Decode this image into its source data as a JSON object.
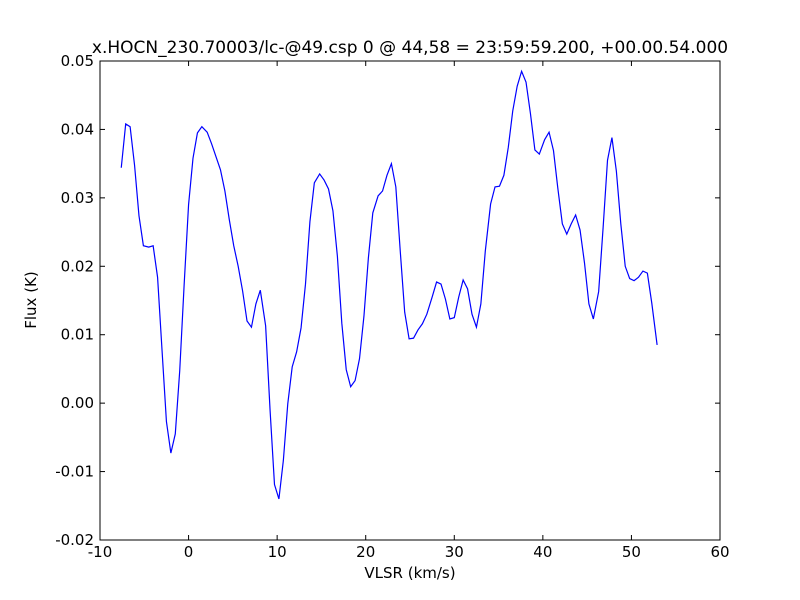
{
  "chart_data": {
    "type": "line",
    "title": "x.HOCN_230.70003/lc-@49.csp 0 @ 44,58 = 23:59:59.200, +00.00.54.000",
    "xlabel": "VLSR (km/s)",
    "ylabel": "Flux (K)",
    "xlim": [
      -10,
      60
    ],
    "xticks": [
      -10,
      0,
      10,
      20,
      30,
      40,
      50,
      60
    ],
    "ylim": [
      -0.02,
      0.05
    ],
    "yticks": [
      -0.02,
      -0.01,
      {
        "value": 0,
        "label": "0.00"
      },
      0.01,
      0.02,
      0.03,
      0.04,
      0.05
    ],
    "x": [
      -7.6,
      -7.1,
      -6.6,
      -6.1,
      -5.6,
      -5.1,
      -4.5,
      -4.0,
      -3.5,
      -3.0,
      -2.5,
      -2.0,
      -1.5,
      -1.0,
      -0.5,
      0.0,
      0.5,
      1.0,
      1.5,
      2.1,
      2.6,
      3.1,
      3.6,
      4.1,
      4.6,
      5.1,
      5.6,
      6.1,
      6.6,
      7.1,
      7.6,
      8.1,
      8.7,
      9.2,
      9.7,
      10.2,
      10.7,
      11.2,
      11.7,
      12.2,
      12.7,
      13.2,
      13.7,
      14.2,
      14.8,
      15.3,
      15.8,
      16.3,
      16.8,
      17.3,
      17.8,
      18.3,
      18.8,
      19.3,
      19.8,
      20.3,
      20.8,
      21.4,
      21.9,
      22.4,
      22.9,
      23.4,
      23.9,
      24.4,
      24.9,
      25.4,
      25.9,
      26.4,
      26.9,
      27.5,
      28.0,
      28.5,
      29.0,
      29.5,
      30.0,
      30.5,
      31.0,
      31.5,
      32.0,
      32.5,
      33.0,
      33.5,
      34.1,
      34.6,
      35.1,
      35.6,
      36.1,
      36.6,
      37.1,
      37.6,
      38.1,
      38.6,
      39.1,
      39.6,
      40.2,
      40.7,
      41.2,
      41.7,
      42.2,
      42.7,
      43.2,
      43.7,
      44.2,
      44.7,
      45.2,
      45.7,
      46.3,
      46.8,
      47.3,
      47.8,
      48.3,
      48.8,
      49.3,
      49.8,
      50.3,
      50.8,
      51.3,
      51.8,
      52.3,
      52.9
    ],
    "series": [
      {
        "color": "#0000ff",
        "values": [
          0.0344,
          0.0408,
          0.0404,
          0.0348,
          0.0274,
          0.023,
          0.0228,
          0.023,
          0.0184,
          0.0078,
          -0.0027,
          -0.0073,
          -0.0045,
          0.0047,
          0.0173,
          0.029,
          0.0358,
          0.0395,
          0.0404,
          0.0396,
          0.0379,
          0.036,
          0.0341,
          0.031,
          0.0268,
          0.023,
          0.02,
          0.0164,
          0.012,
          0.0111,
          0.0145,
          0.0165,
          0.0113,
          -0.001,
          -0.0119,
          -0.014,
          -0.0084,
          -0.0001,
          0.0053,
          0.0075,
          0.011,
          0.0174,
          0.0265,
          0.0322,
          0.0335,
          0.0326,
          0.0313,
          0.0281,
          0.0215,
          0.0117,
          0.0049,
          0.0024,
          0.0033,
          0.0065,
          0.0127,
          0.0212,
          0.0278,
          0.0303,
          0.031,
          0.0333,
          0.035,
          0.0316,
          0.0222,
          0.0133,
          0.0094,
          0.0095,
          0.0107,
          0.0116,
          0.013,
          0.0155,
          0.0177,
          0.0174,
          0.0152,
          0.0123,
          0.0125,
          0.0155,
          0.018,
          0.0167,
          0.013,
          0.0111,
          0.0145,
          0.0222,
          0.0291,
          0.0316,
          0.0317,
          0.0333,
          0.0374,
          0.0427,
          0.0463,
          0.0485,
          0.0469,
          0.0423,
          0.037,
          0.0364,
          0.0385,
          0.0396,
          0.0369,
          0.0313,
          0.0262,
          0.0247,
          0.0262,
          0.0275,
          0.0253,
          0.0205,
          0.0145,
          0.0123,
          0.0163,
          0.0256,
          0.0355,
          0.0388,
          0.0339,
          0.0262,
          0.02,
          0.0182,
          0.0179,
          0.0184,
          0.0193,
          0.019,
          0.0146,
          0.0085
        ]
      }
    ]
  }
}
